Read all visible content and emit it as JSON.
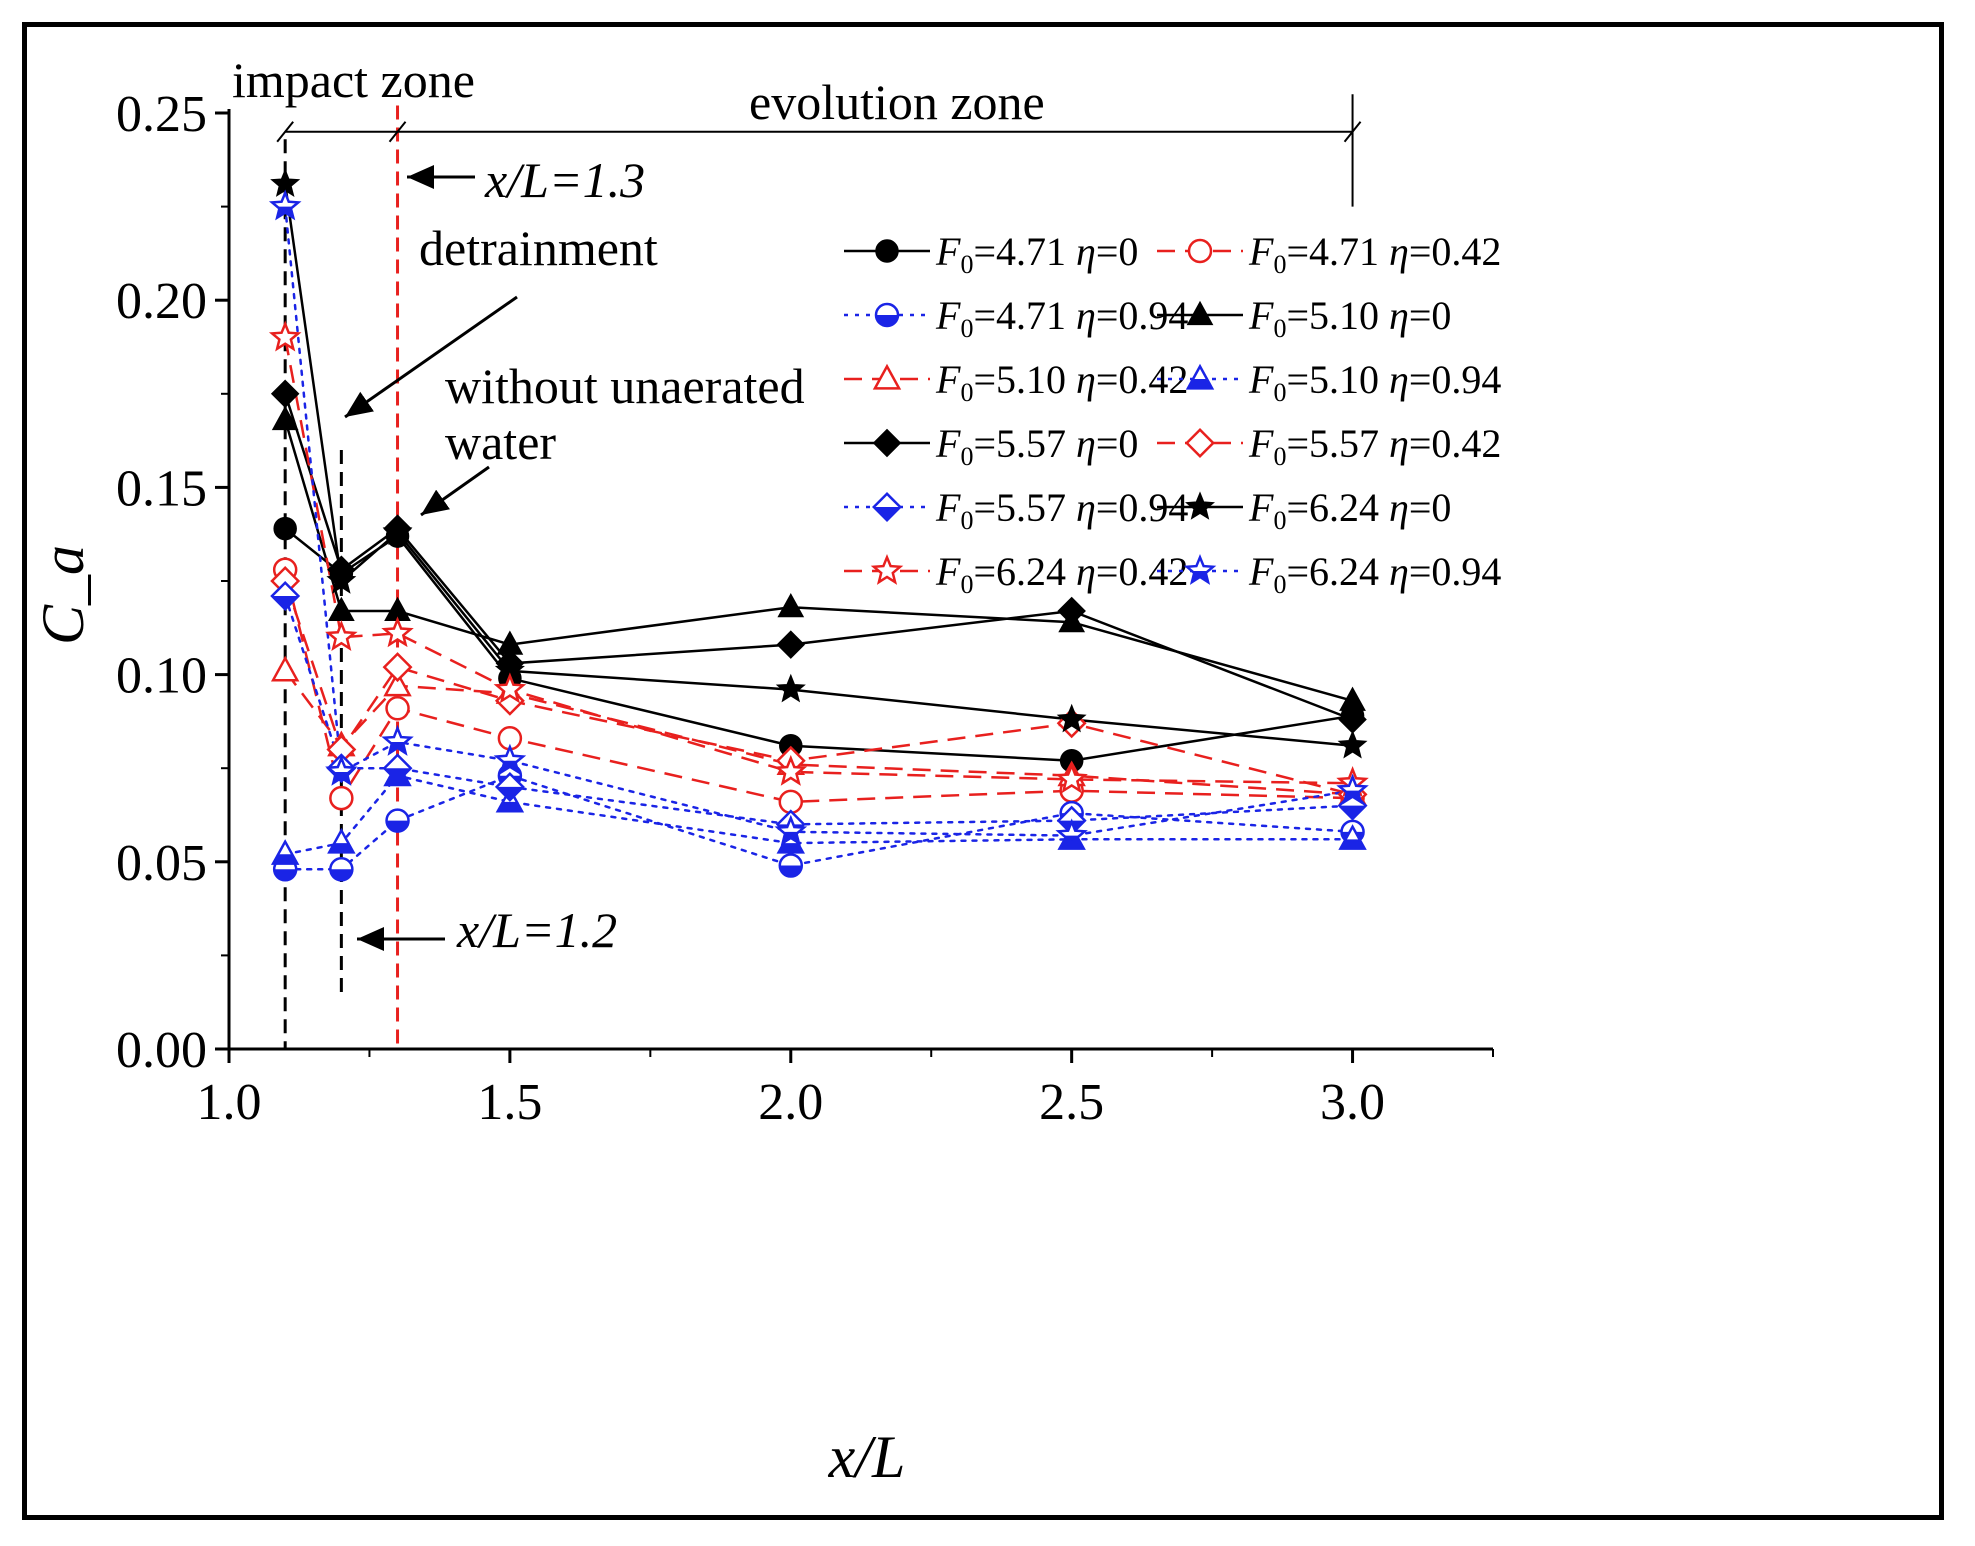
{
  "chart_data": {
    "type": "line",
    "xlabel": "x/L",
    "ylabel": "C_a",
    "xlim": [
      1.0,
      3.25
    ],
    "ylim": [
      0.0,
      0.25
    ],
    "x_ticks": [
      "1.0",
      "1.5",
      "2.0",
      "2.5",
      "3.0"
    ],
    "y_ticks": [
      "0.00",
      "0.05",
      "0.10",
      "0.15",
      "0.20",
      "0.25"
    ],
    "x": [
      1.1,
      1.2,
      1.3,
      1.5,
      2.0,
      2.5,
      3.0
    ],
    "annotations": {
      "impact_zone": "impact zone",
      "evolution_zone": "evolution zone",
      "xl13": "x/L=1.3",
      "xl12": "x/L=1.2",
      "detrainment": "detrainment",
      "without_line1": "without unaerated",
      "without_line2": "water"
    },
    "series": [
      {
        "name": "F0=4.71 η=0",
        "F0": "4.71",
        "eta": "0",
        "color": "#000000",
        "marker": "circle",
        "fill": "full",
        "dash": "solid",
        "values": [
          0.139,
          0.127,
          0.137,
          0.099,
          0.081,
          0.077,
          0.089
        ]
      },
      {
        "name": "F0=4.71 η=0.42",
        "F0": "4.71",
        "eta": "0.42",
        "color": "#e8201e",
        "marker": "circle",
        "fill": "none",
        "dash": "dashed",
        "values": [
          0.128,
          0.067,
          0.091,
          0.083,
          0.066,
          0.069,
          0.067
        ]
      },
      {
        "name": "F0=4.71 η=0.94",
        "F0": "4.71",
        "eta": "0.94",
        "color": "#1a24e6",
        "marker": "circle",
        "fill": "half",
        "dash": "dotted",
        "values": [
          0.048,
          0.048,
          0.061,
          0.073,
          0.049,
          0.063,
          0.058
        ]
      },
      {
        "name": "F0=5.10 η=0",
        "F0": "5.10",
        "eta": "0",
        "color": "#000000",
        "marker": "triangle",
        "fill": "full",
        "dash": "solid",
        "values": [
          0.168,
          0.117,
          0.117,
          0.108,
          0.118,
          0.114,
          0.093
        ]
      },
      {
        "name": "F0=5.10 η=0.42",
        "F0": "5.10",
        "eta": "0.42",
        "color": "#e8201e",
        "marker": "triangle",
        "fill": "none",
        "dash": "dashed",
        "values": [
          0.101,
          0.081,
          0.097,
          0.095,
          0.076,
          0.073,
          0.068
        ]
      },
      {
        "name": "F0=5.10 η=0.94",
        "F0": "5.10",
        "eta": "0.94",
        "color": "#1a24e6",
        "marker": "triangle",
        "fill": "half",
        "dash": "dotted",
        "values": [
          0.052,
          0.055,
          0.073,
          0.066,
          0.055,
          0.056,
          0.056
        ]
      },
      {
        "name": "F0=5.57 η=0",
        "F0": "5.57",
        "eta": "0",
        "color": "#000000",
        "marker": "diamond",
        "fill": "full",
        "dash": "solid",
        "values": [
          0.175,
          0.128,
          0.139,
          0.103,
          0.108,
          0.117,
          0.088
        ]
      },
      {
        "name": "F0=5.57 η=0.42",
        "F0": "5.57",
        "eta": "0.42",
        "color": "#e8201e",
        "marker": "diamond",
        "fill": "none",
        "dash": "dashed",
        "values": [
          0.125,
          0.08,
          0.102,
          0.093,
          0.077,
          0.087,
          0.068
        ]
      },
      {
        "name": "F0=5.57 η=0.94",
        "F0": "5.57",
        "eta": "0.94",
        "color": "#1a24e6",
        "marker": "diamond",
        "fill": "half",
        "dash": "dotted",
        "values": [
          0.121,
          0.075,
          0.075,
          0.07,
          0.06,
          0.061,
          0.065
        ]
      },
      {
        "name": "F0=6.24 η=0",
        "F0": "6.24",
        "eta": "0",
        "color": "#000000",
        "marker": "star",
        "fill": "full",
        "dash": "solid",
        "values": [
          0.231,
          0.125,
          0.138,
          0.101,
          0.096,
          0.088,
          0.081
        ]
      },
      {
        "name": "F0=6.24 η=0.42",
        "F0": "6.24",
        "eta": "0.42",
        "color": "#e8201e",
        "marker": "star",
        "fill": "none",
        "dash": "dashed",
        "values": [
          0.19,
          0.11,
          0.111,
          0.096,
          0.074,
          0.072,
          0.071
        ]
      },
      {
        "name": "F0=6.24 η=0.94",
        "F0": "6.24",
        "eta": "0.94",
        "color": "#1a24e6",
        "marker": "star",
        "fill": "half",
        "dash": "dotted",
        "values": [
          0.225,
          0.074,
          0.082,
          0.077,
          0.058,
          0.057,
          0.069
        ]
      }
    ]
  }
}
